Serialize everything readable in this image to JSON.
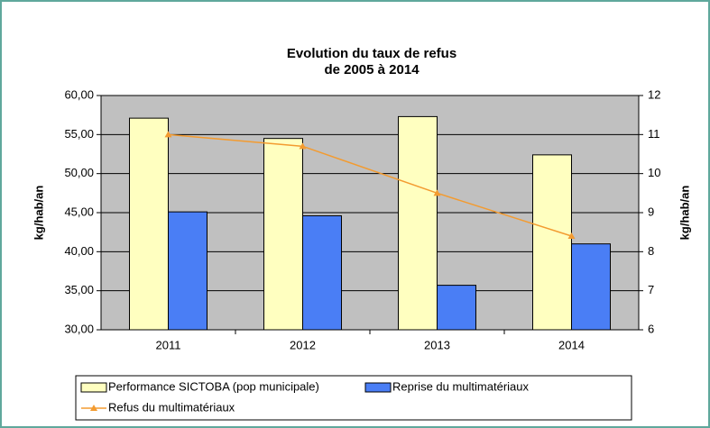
{
  "chart_data": {
    "type": "bar-line",
    "title": [
      "Evolution du taux de refus",
      "de 2005 à 2014"
    ],
    "ylabel": "kg/hab/an",
    "y2label": "kg/hab/an",
    "categories": [
      "2011",
      "2012",
      "2013",
      "2014"
    ],
    "series": [
      {
        "name": "Performance SICTOBA (pop municipale)",
        "type": "bar",
        "color": "#ffffc0",
        "values": [
          57.1,
          54.5,
          57.3,
          52.4
        ]
      },
      {
        "name": "Reprise du multimatériaux",
        "type": "bar",
        "color": "#4a7ef5",
        "values": [
          45.1,
          44.6,
          35.7,
          41.0
        ]
      },
      {
        "name": "Refus du multimatériaux",
        "type": "line",
        "axis": "y2",
        "color": "#f39b30",
        "values": [
          11.0,
          10.7,
          9.5,
          8.4
        ]
      }
    ],
    "ylim": [
      30,
      60
    ],
    "yticks": [
      {
        "value": 30,
        "label": "30,00"
      },
      {
        "value": 35,
        "label": "35,00"
      },
      {
        "value": 40,
        "label": "40,00"
      },
      {
        "value": 45,
        "label": "45,00"
      },
      {
        "value": 50,
        "label": "50,00"
      },
      {
        "value": 55,
        "label": "55,00"
      },
      {
        "value": 60,
        "label": "60,00"
      }
    ],
    "y2lim": [
      6,
      12
    ],
    "y2ticks": [
      6,
      7,
      8,
      9,
      10,
      11,
      12
    ],
    "grid": true,
    "legend": "bottom"
  }
}
